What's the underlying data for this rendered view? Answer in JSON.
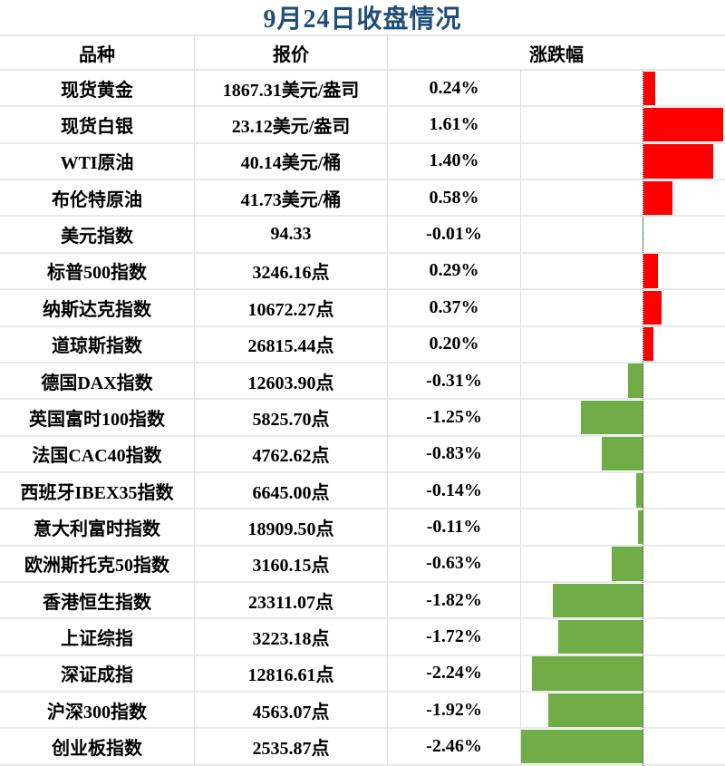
{
  "title": "9月24日收盘情况",
  "table": {
    "headers": {
      "name": "品种",
      "price": "报价",
      "change": "涨跌幅"
    },
    "rows": [
      {
        "name": "现货黄金",
        "price": "1867.31美元/盎司",
        "change": "0.24%",
        "value": 0.24
      },
      {
        "name": "现货白银",
        "price": "23.12美元/盎司",
        "change": "1.61%",
        "value": 1.61
      },
      {
        "name": "WTI原油",
        "price": "40.14美元/桶",
        "change": "1.40%",
        "value": 1.4
      },
      {
        "name": "布伦特原油",
        "price": "41.73美元/桶",
        "change": "0.58%",
        "value": 0.58
      },
      {
        "name": "美元指数",
        "price": "94.33",
        "change": "-0.01%",
        "value": -0.01
      },
      {
        "name": "标普500指数",
        "price": "3246.16点",
        "change": "0.29%",
        "value": 0.29
      },
      {
        "name": "纳斯达克指数",
        "price": "10672.27点",
        "change": "0.37%",
        "value": 0.37
      },
      {
        "name": "道琼斯指数",
        "price": "26815.44点",
        "change": "0.20%",
        "value": 0.2
      },
      {
        "name": "德国DAX指数",
        "price": "12603.90点",
        "change": "-0.31%",
        "value": -0.31
      },
      {
        "name": "英国富时100指数",
        "price": "5825.70点",
        "change": "-1.25%",
        "value": -1.25
      },
      {
        "name": "法国CAC40指数",
        "price": "4762.62点",
        "change": "-0.83%",
        "value": -0.83
      },
      {
        "name": "西班牙IBEX35指数",
        "price": "6645.00点",
        "change": "-0.14%",
        "value": -0.14
      },
      {
        "name": "意大利富时指数",
        "price": "18909.50点",
        "change": "-0.11%",
        "value": -0.11
      },
      {
        "name": "欧洲斯托克50指数",
        "price": "3160.15点",
        "change": "-0.63%",
        "value": -0.63
      },
      {
        "name": "香港恒生指数",
        "price": "23311.07点",
        "change": "-1.82%",
        "value": -1.82
      },
      {
        "name": "上证综指",
        "price": "3223.18点",
        "change": "-1.72%",
        "value": -1.72
      },
      {
        "name": "深证成指",
        "price": "12816.61点",
        "change": "-2.24%",
        "value": -2.24
      },
      {
        "name": "沪深300指数",
        "price": "4563.07点",
        "change": "-1.92%",
        "value": -1.92
      },
      {
        "name": "创业板指数",
        "price": "2535.87点",
        "change": "-2.46%",
        "value": -2.46
      }
    ]
  },
  "chart_config": {
    "axis_position_pct": 60,
    "cell_pct_per_unit": 24.39,
    "positive_color": "#FF0000",
    "negative_color": "#70AD47"
  },
  "chart_data": {
    "type": "bar",
    "orientation": "horizontal",
    "title": "9月24日收盘情况",
    "xlabel": "涨跌幅 (%)",
    "ylabel": "品种",
    "categories": [
      "现货黄金",
      "现货白银",
      "WTI原油",
      "布伦特原油",
      "美元指数",
      "标普500指数",
      "纳斯达克指数",
      "道琼斯指数",
      "德国DAX指数",
      "英国富时100指数",
      "法国CAC40指数",
      "西班牙IBEX35指数",
      "意大利富时指数",
      "欧洲斯托克50指数",
      "香港恒生指数",
      "上证综指",
      "深证成指",
      "沪深300指数",
      "创业板指数"
    ],
    "values": [
      0.24,
      1.61,
      1.4,
      0.58,
      -0.01,
      0.29,
      0.37,
      0.2,
      -0.31,
      -1.25,
      -0.83,
      -0.14,
      -0.11,
      -0.63,
      -1.82,
      -1.72,
      -2.24,
      -1.92,
      -2.46
    ],
    "xlim": [
      -2.46,
      1.64
    ],
    "grid": "row-separators-only",
    "legend": "none",
    "zero_axis_style": "dotted",
    "positive_color": "#FF0000",
    "negative_color": "#70AD47"
  },
  "colors": {
    "title_text": "#1F4E79",
    "body_text": "#000000",
    "grid_line": "#E7E7E7",
    "positive_bar": "#FF0000",
    "negative_bar": "#70AD47",
    "zero_axis": "#4d4d4d",
    "background": "#FFFFFF"
  }
}
